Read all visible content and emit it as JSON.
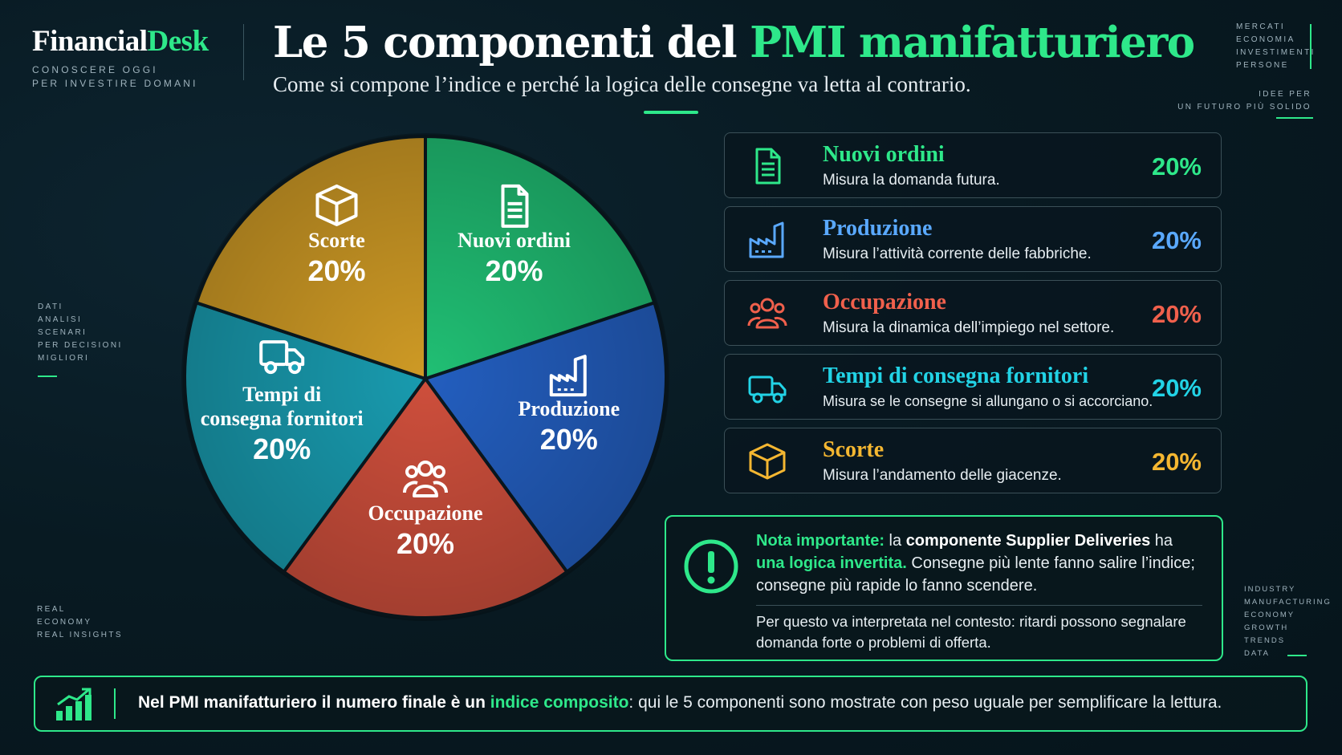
{
  "brand": {
    "name_part1": "Financial",
    "name_part2": "Desk",
    "tagline_line1": "CONOSCERE OGGI",
    "tagline_line2": "PER INVESTIRE DOMANI"
  },
  "header": {
    "title_part1": "Le 5 componenti del ",
    "title_part2": "PMI manifatturiero",
    "subtitle": "Come si compone l’indice e perché la logica delle consegne va letta al contrario."
  },
  "side_labels": {
    "top_right": [
      "MERCATI",
      "ECONOMIA",
      "INVESTIMENTI",
      "PERSONE"
    ],
    "top_right_2": [
      "IDEE PER",
      "UN FUTURO PIÙ SOLIDO"
    ],
    "left_mid": [
      "DATI",
      "ANALISI",
      "SCENARI",
      "PER DECISIONI",
      "MIGLIORI"
    ],
    "left_bottom": [
      "REAL",
      "ECONOMY",
      "REAL INSIGHTS"
    ],
    "right_bottom": [
      "INDUSTRY",
      "MANUFACTURING",
      "ECONOMY",
      "GROWTH",
      "TRENDS",
      "DATA"
    ]
  },
  "chart_data": {
    "type": "pie",
    "categories": [
      "Nuovi ordini",
      "Produzione",
      "Occupazione",
      "Tempi di consegna fornitori",
      "Scorte"
    ],
    "values": [
      20,
      20,
      20,
      20,
      20
    ],
    "value_labels": [
      "20%",
      "20%",
      "20%",
      "20%",
      "20%"
    ],
    "colors": [
      "#22c97a",
      "#2563c9",
      "#d9533f",
      "#1aa3b8",
      "#d9a227"
    ]
  },
  "cards": [
    {
      "title": "Nuovi ordini",
      "desc": "Misura la domanda futura.",
      "pct": "20%",
      "color": "#2ee88a",
      "icon": "document-icon"
    },
    {
      "title": "Produzione",
      "desc": "Misura l’attività corrente delle fabbriche.",
      "pct": "20%",
      "color": "#5aa9ff",
      "icon": "factory-icon"
    },
    {
      "title": "Occupazione",
      "desc": "Misura la dinamica dell’impiego nel settore.",
      "pct": "20%",
      "color": "#f0604c",
      "icon": "people-icon"
    },
    {
      "title": "Tempi di consegna fornitori",
      "desc": "Misura se le consegne si allungano o si accorciano.",
      "pct": "20%",
      "color": "#22d3e6",
      "icon": "truck-icon"
    },
    {
      "title": "Scorte",
      "desc": "Misura l’andamento delle giacenze.",
      "pct": "20%",
      "color": "#f5b731",
      "icon": "box-icon"
    }
  ],
  "note": {
    "label": "Nota importante:",
    "t1": " la ",
    "t2": "componente Supplier Deliveries",
    "t3": " ha ",
    "t4": "una logica invertita.",
    "t5": " Consegne più lente fanno salire l’indice; consegne più rapide lo fanno scendere.",
    "secondary": "Per questo va interpretata nel contesto: ritardi possono segnalare domanda forte o problemi di offerta."
  },
  "footer": {
    "t1": "Nel PMI manifatturiero il numero finale è un ",
    "t2": "indice composito",
    "t3": ": qui le 5 componenti sono mostrate con peso uguale per semplificare la lettura."
  }
}
